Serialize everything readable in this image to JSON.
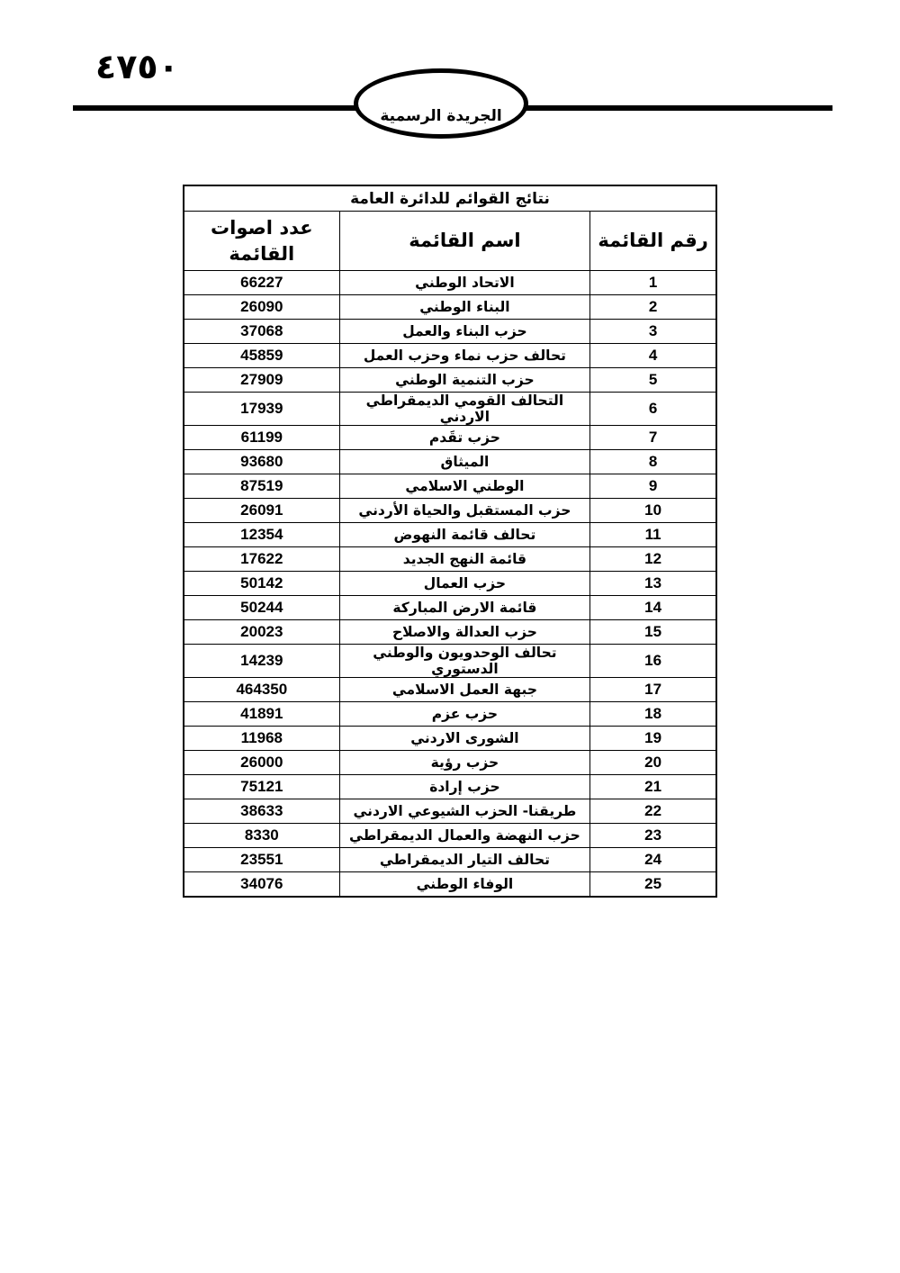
{
  "page": {
    "page_number": "٤٧٥٠",
    "banner_text": "الجريدة الرسمية",
    "ink_color": "#000000",
    "background_color": "#ffffff"
  },
  "table": {
    "title": "نتائج القوائم للدائرة العامة",
    "headers": {
      "number": "رقم القائمة",
      "name": "اسم القائمة",
      "votes": "عدد اصوات القائمة"
    },
    "rows": [
      {
        "num": "1",
        "name": "الاتحاد الوطني",
        "votes": "66227"
      },
      {
        "num": "2",
        "name": "البناء الوطني",
        "votes": "26090"
      },
      {
        "num": "3",
        "name": "حزب البناء والعمل",
        "votes": "37068"
      },
      {
        "num": "4",
        "name": "تحالف حزب نماء وحزب العمل",
        "votes": "45859"
      },
      {
        "num": "5",
        "name": "حزب التنمية الوطني",
        "votes": "27909"
      },
      {
        "num": "6",
        "name": "التحالف القومي الديمقراطي الاردني",
        "votes": "17939"
      },
      {
        "num": "7",
        "name": "حزب تقَدم",
        "votes": "61199"
      },
      {
        "num": "8",
        "name": "الميثاق",
        "votes": "93680"
      },
      {
        "num": "9",
        "name": "الوطني الاسلامي",
        "votes": "87519"
      },
      {
        "num": "10",
        "name": "حزب المستقبل والحياة الأردني",
        "votes": "26091"
      },
      {
        "num": "11",
        "name": "تحالف قائمة النهوض",
        "votes": "12354"
      },
      {
        "num": "12",
        "name": "قائمة النهج الجديد",
        "votes": "17622"
      },
      {
        "num": "13",
        "name": "حزب العمال",
        "votes": "50142"
      },
      {
        "num": "14",
        "name": "قائمة الارض المباركة",
        "votes": "50244"
      },
      {
        "num": "15",
        "name": "حزب العدالة والاصلاح",
        "votes": "20023"
      },
      {
        "num": "16",
        "name": "تحالف الوحدويون والوطني الدستوري",
        "votes": "14239"
      },
      {
        "num": "17",
        "name": "جبهة العمل الاسلامي",
        "votes": "464350"
      },
      {
        "num": "18",
        "name": "حزب عزم",
        "votes": "41891"
      },
      {
        "num": "19",
        "name": "الشورى الاردني",
        "votes": "11968"
      },
      {
        "num": "20",
        "name": "حزب رؤية",
        "votes": "26000"
      },
      {
        "num": "21",
        "name": "حزب إرادة",
        "votes": "75121"
      },
      {
        "num": "22",
        "name": "طريقنا- الحزب الشيوعي الاردني",
        "votes": "38633"
      },
      {
        "num": "23",
        "name": "حزب النهضة والعمال الديمقراطي",
        "votes": "8330"
      },
      {
        "num": "24",
        "name": "تحالف التيار الديمقراطي",
        "votes": "23551"
      },
      {
        "num": "25",
        "name": "الوفاء الوطني",
        "votes": "34076"
      }
    ]
  }
}
